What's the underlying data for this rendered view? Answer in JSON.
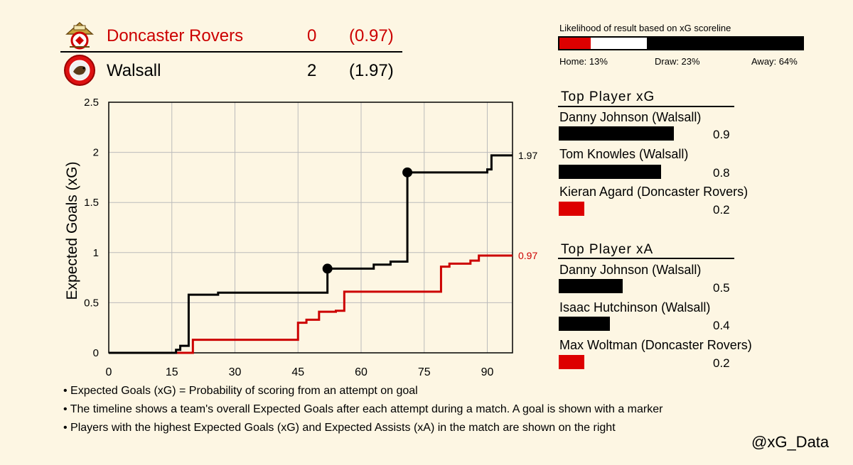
{
  "header": {
    "home": {
      "name": "Doncaster Rovers",
      "score": "0",
      "xg": "(0.97)",
      "color": "#cc0000",
      "logo": "doncaster-crest-icon"
    },
    "away": {
      "name": "Walsall",
      "score": "2",
      "xg": "(1.97)",
      "color": "#000000",
      "logo": "walsall-crest-icon"
    }
  },
  "likelihood": {
    "title": "Likelihood of result based on xG scoreline",
    "home_label": "Home: 13%",
    "draw_label": "Draw: 23%",
    "away_label": "Away: 64%",
    "home_pct": 13,
    "draw_pct": 23,
    "away_pct": 64
  },
  "top_xg": {
    "title": "Top Player xG",
    "players": [
      {
        "name": "Danny Johnson (Walsall)",
        "value": 0.9,
        "value_label": "0.9",
        "color": "#000000"
      },
      {
        "name": "Tom Knowles (Walsall)",
        "value": 0.8,
        "value_label": "0.8",
        "color": "#000000"
      },
      {
        "name": "Kieran Agard (Doncaster Rovers)",
        "value": 0.2,
        "value_label": "0.2",
        "color": "#dd0000"
      }
    ]
  },
  "top_xa": {
    "title": "Top Player xA",
    "players": [
      {
        "name": "Danny Johnson (Walsall)",
        "value": 0.5,
        "value_label": "0.5",
        "color": "#000000"
      },
      {
        "name": "Isaac Hutchinson (Walsall)",
        "value": 0.4,
        "value_label": "0.4",
        "color": "#000000"
      },
      {
        "name": "Max Woltman (Doncaster Rovers)",
        "value": 0.2,
        "value_label": "0.2",
        "color": "#dd0000"
      }
    ]
  },
  "notes": [
    "• Expected Goals (xG) = Probability of scoring from an attempt on goal",
    "• The timeline shows a team's overall Expected Goals after each attempt during a match. A goal is shown with a marker",
    "• Players with the highest Expected Goals (xG) and Expected Assists (xA) in the match are shown on the right"
  ],
  "handle": "@xG_Data",
  "chart_data": {
    "type": "line",
    "ylabel": "Expected Goals (xG)",
    "xlabel": "",
    "xlim": [
      0,
      96
    ],
    "ylim": [
      0,
      2.5
    ],
    "xticks": [
      0,
      15,
      30,
      45,
      60,
      75,
      90
    ],
    "yticks": [
      0,
      0.5,
      1,
      1.5,
      2,
      2.5
    ],
    "ytick_labels": [
      "0",
      "0.5",
      "1",
      "1.5",
      "2",
      "2.5"
    ],
    "grid": true,
    "series": [
      {
        "name": "Walsall",
        "color": "#000000",
        "end_label": "1.97",
        "points": [
          [
            0,
            0
          ],
          [
            16,
            0.03
          ],
          [
            17,
            0.07
          ],
          [
            19,
            0.58
          ],
          [
            26,
            0.6
          ],
          [
            52,
            0.84
          ],
          [
            63,
            0.88
          ],
          [
            67,
            0.91
          ],
          [
            71,
            1.8
          ],
          [
            90,
            1.83
          ],
          [
            91,
            1.97
          ],
          [
            96,
            1.97
          ]
        ],
        "goals": [
          [
            52,
            0.84
          ],
          [
            71,
            1.8
          ]
        ]
      },
      {
        "name": "Doncaster Rovers",
        "color": "#cc0000",
        "end_label": "0.97",
        "points": [
          [
            0,
            0
          ],
          [
            20,
            0.13
          ],
          [
            45,
            0.3
          ],
          [
            47,
            0.33
          ],
          [
            50,
            0.41
          ],
          [
            54,
            0.42
          ],
          [
            56,
            0.61
          ],
          [
            79,
            0.86
          ],
          [
            81,
            0.89
          ],
          [
            86,
            0.92
          ],
          [
            88,
            0.97
          ],
          [
            96,
            0.97
          ]
        ],
        "goals": []
      }
    ]
  }
}
